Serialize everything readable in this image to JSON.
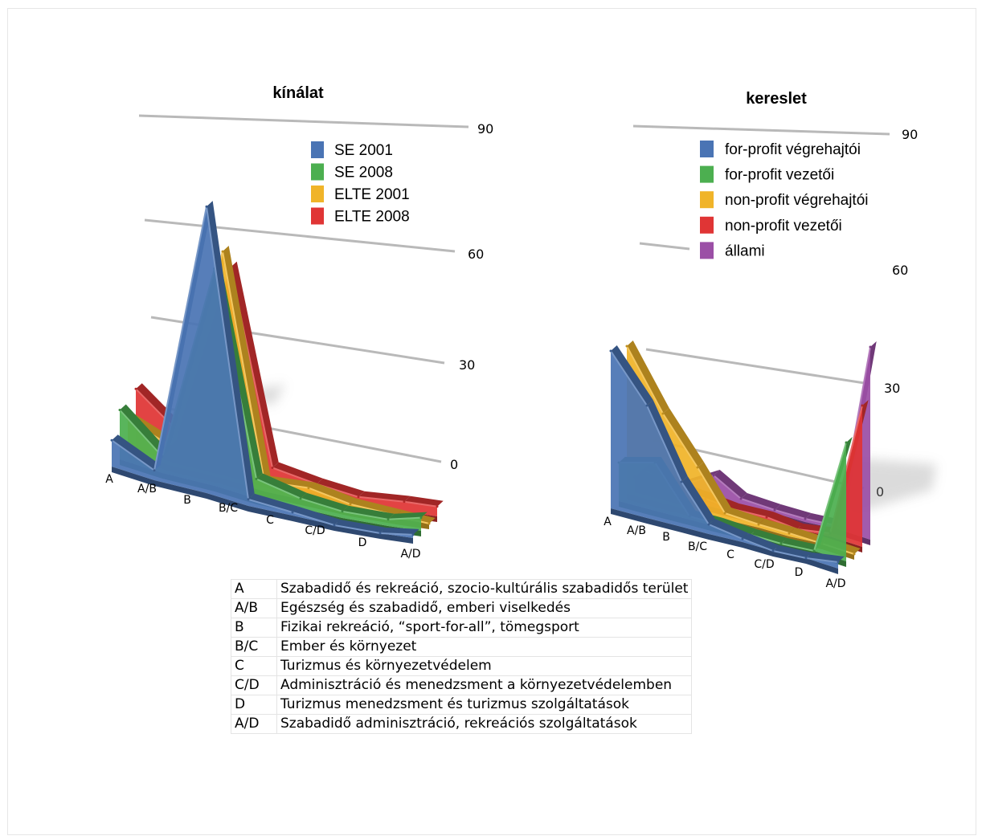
{
  "chart_data": [
    {
      "type": "area",
      "title": "kínálat",
      "y_ticks": [
        "0",
        "30",
        "60",
        "90"
      ],
      "ylim": [
        0,
        90
      ],
      "grid": true,
      "legend_placement": "top-right",
      "categories": [
        "A",
        "A/B",
        "B",
        "B/C",
        "C",
        "C/D",
        "D",
        "A/D"
      ],
      "series": [
        {
          "name": "SE 2001",
          "color": "#4a74b4",
          "values": [
            8,
            3,
            87,
            2,
            1,
            0,
            0,
            1
          ]
        },
        {
          "name": "SE 2008",
          "color": "#4caf50",
          "values": [
            15,
            5,
            66,
            6,
            3,
            2,
            2,
            4
          ]
        },
        {
          "name": "ELTE 2001",
          "color": "#f0b429",
          "values": [
            10,
            6,
            69,
            3,
            4,
            2,
            1,
            0
          ]
        },
        {
          "name": "ELTE 2008",
          "color": "#e03535",
          "values": [
            17,
            8,
            62,
            5,
            3,
            2,
            3,
            3
          ]
        }
      ]
    },
    {
      "type": "area",
      "title": "kereslet",
      "y_ticks": [
        "0",
        "30",
        "60",
        "90"
      ],
      "ylim": [
        0,
        90
      ],
      "grid": true,
      "legend_placement": "top-right",
      "categories": [
        "A",
        "A/B",
        "B",
        "B/C",
        "C",
        "C/D",
        "D",
        "A/D"
      ],
      "series": [
        {
          "name": "for-profit végrehajtói",
          "color": "#4a74b4",
          "values": [
            49,
            35,
            14,
            3,
            1,
            0,
            0,
            2
          ]
        },
        {
          "name": "for-profit vezetői",
          "color": "#4caf50",
          "values": [
            12,
            15,
            1,
            1,
            0,
            0,
            0,
            37
          ]
        },
        {
          "name": "non-profit végrehajtói",
          "color": "#f0b429",
          "values": [
            46,
            28,
            14,
            2,
            1,
            1,
            0,
            0
          ]
        },
        {
          "name": "non-profit vezetői",
          "color": "#e03535",
          "values": [
            3,
            3,
            2,
            1,
            1,
            0,
            1,
            44
          ]
        },
        {
          "name": "állami",
          "color": "#9b4fa6",
          "values": [
            3,
            1,
            7,
            2,
            1,
            1,
            1,
            60
          ]
        }
      ]
    }
  ],
  "legend_table": [
    {
      "code": "A",
      "text": "Szabadidő és rekreáció, szocio-kultúrális szabadidős terület"
    },
    {
      "code": "A/B",
      "text": "Egészség és szabadidő, emberi viselkedés"
    },
    {
      "code": "B",
      "text": "Fizikai rekreáció, “sport-for-all”, tömegsport"
    },
    {
      "code": "B/C",
      "text": "Ember és környezet"
    },
    {
      "code": "C",
      "text": "Turizmus és környezetvédelem"
    },
    {
      "code": "C/D",
      "text": "Adminisztráció és menedzsment a környezetvédelemben"
    },
    {
      "code": "D",
      "text": "Turizmus menedzsment és turizmus szolgáltatások"
    },
    {
      "code": "A/D",
      "text": "Szabadidő adminisztráció, rekreációs szolgáltatások"
    }
  ]
}
